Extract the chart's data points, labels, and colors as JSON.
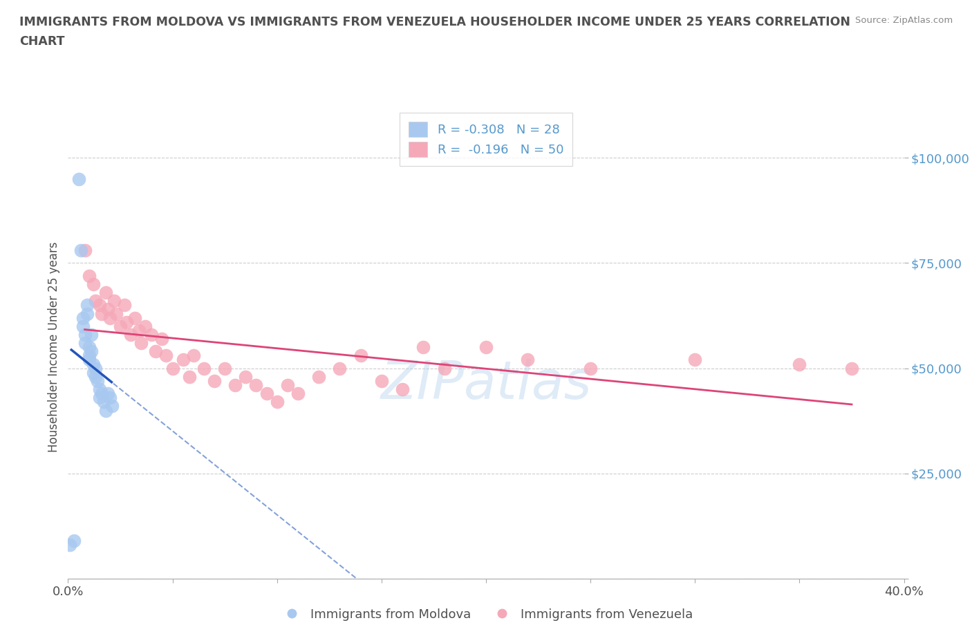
{
  "title_line1": "IMMIGRANTS FROM MOLDOVA VS IMMIGRANTS FROM VENEZUELA HOUSEHOLDER INCOME UNDER 25 YEARS CORRELATION",
  "title_line2": "CHART",
  "source": "Source: ZipAtlas.com",
  "ylabel": "Householder Income Under 25 years",
  "xlim": [
    0.0,
    0.4
  ],
  "ylim": [
    0,
    110000
  ],
  "moldova_color": "#a8c8f0",
  "venezuela_color": "#f5a8b8",
  "moldova_trend_color": "#2255bb",
  "venezuela_trend_color": "#dd4477",
  "moldova_r": -0.308,
  "moldova_n": 28,
  "venezuela_r": -0.196,
  "venezuela_n": 50,
  "moldova_x": [
    0.001,
    0.003,
    0.005,
    0.006,
    0.007,
    0.007,
    0.008,
    0.008,
    0.009,
    0.009,
    0.01,
    0.01,
    0.01,
    0.011,
    0.011,
    0.012,
    0.012,
    0.013,
    0.013,
    0.014,
    0.015,
    0.015,
    0.016,
    0.017,
    0.018,
    0.019,
    0.02,
    0.021
  ],
  "moldova_y": [
    8000,
    9000,
    95000,
    78000,
    62000,
    60000,
    58000,
    56000,
    65000,
    63000,
    55000,
    53000,
    52000,
    58000,
    54000,
    51000,
    49000,
    50000,
    48000,
    47000,
    45000,
    43000,
    44000,
    42000,
    40000,
    44000,
    43000,
    41000
  ],
  "venezuela_x": [
    0.008,
    0.01,
    0.012,
    0.013,
    0.015,
    0.016,
    0.018,
    0.019,
    0.02,
    0.022,
    0.023,
    0.025,
    0.027,
    0.028,
    0.03,
    0.032,
    0.034,
    0.035,
    0.037,
    0.04,
    0.042,
    0.045,
    0.047,
    0.05,
    0.055,
    0.058,
    0.06,
    0.065,
    0.07,
    0.075,
    0.08,
    0.085,
    0.09,
    0.095,
    0.1,
    0.105,
    0.11,
    0.12,
    0.13,
    0.14,
    0.15,
    0.16,
    0.17,
    0.18,
    0.2,
    0.22,
    0.25,
    0.3,
    0.35,
    0.375
  ],
  "venezuela_y": [
    78000,
    72000,
    70000,
    66000,
    65000,
    63000,
    68000,
    64000,
    62000,
    66000,
    63000,
    60000,
    65000,
    61000,
    58000,
    62000,
    59000,
    56000,
    60000,
    58000,
    54000,
    57000,
    53000,
    50000,
    52000,
    48000,
    53000,
    50000,
    47000,
    50000,
    46000,
    48000,
    46000,
    44000,
    42000,
    46000,
    44000,
    48000,
    50000,
    53000,
    47000,
    45000,
    55000,
    50000,
    55000,
    52000,
    50000,
    52000,
    51000,
    50000
  ],
  "watermark": "ZIPatlas",
  "background_color": "#ffffff",
  "grid_color": "#cccccc",
  "title_color": "#505050",
  "axis_label_color": "#505050",
  "tick_label_color": "#5599cc"
}
